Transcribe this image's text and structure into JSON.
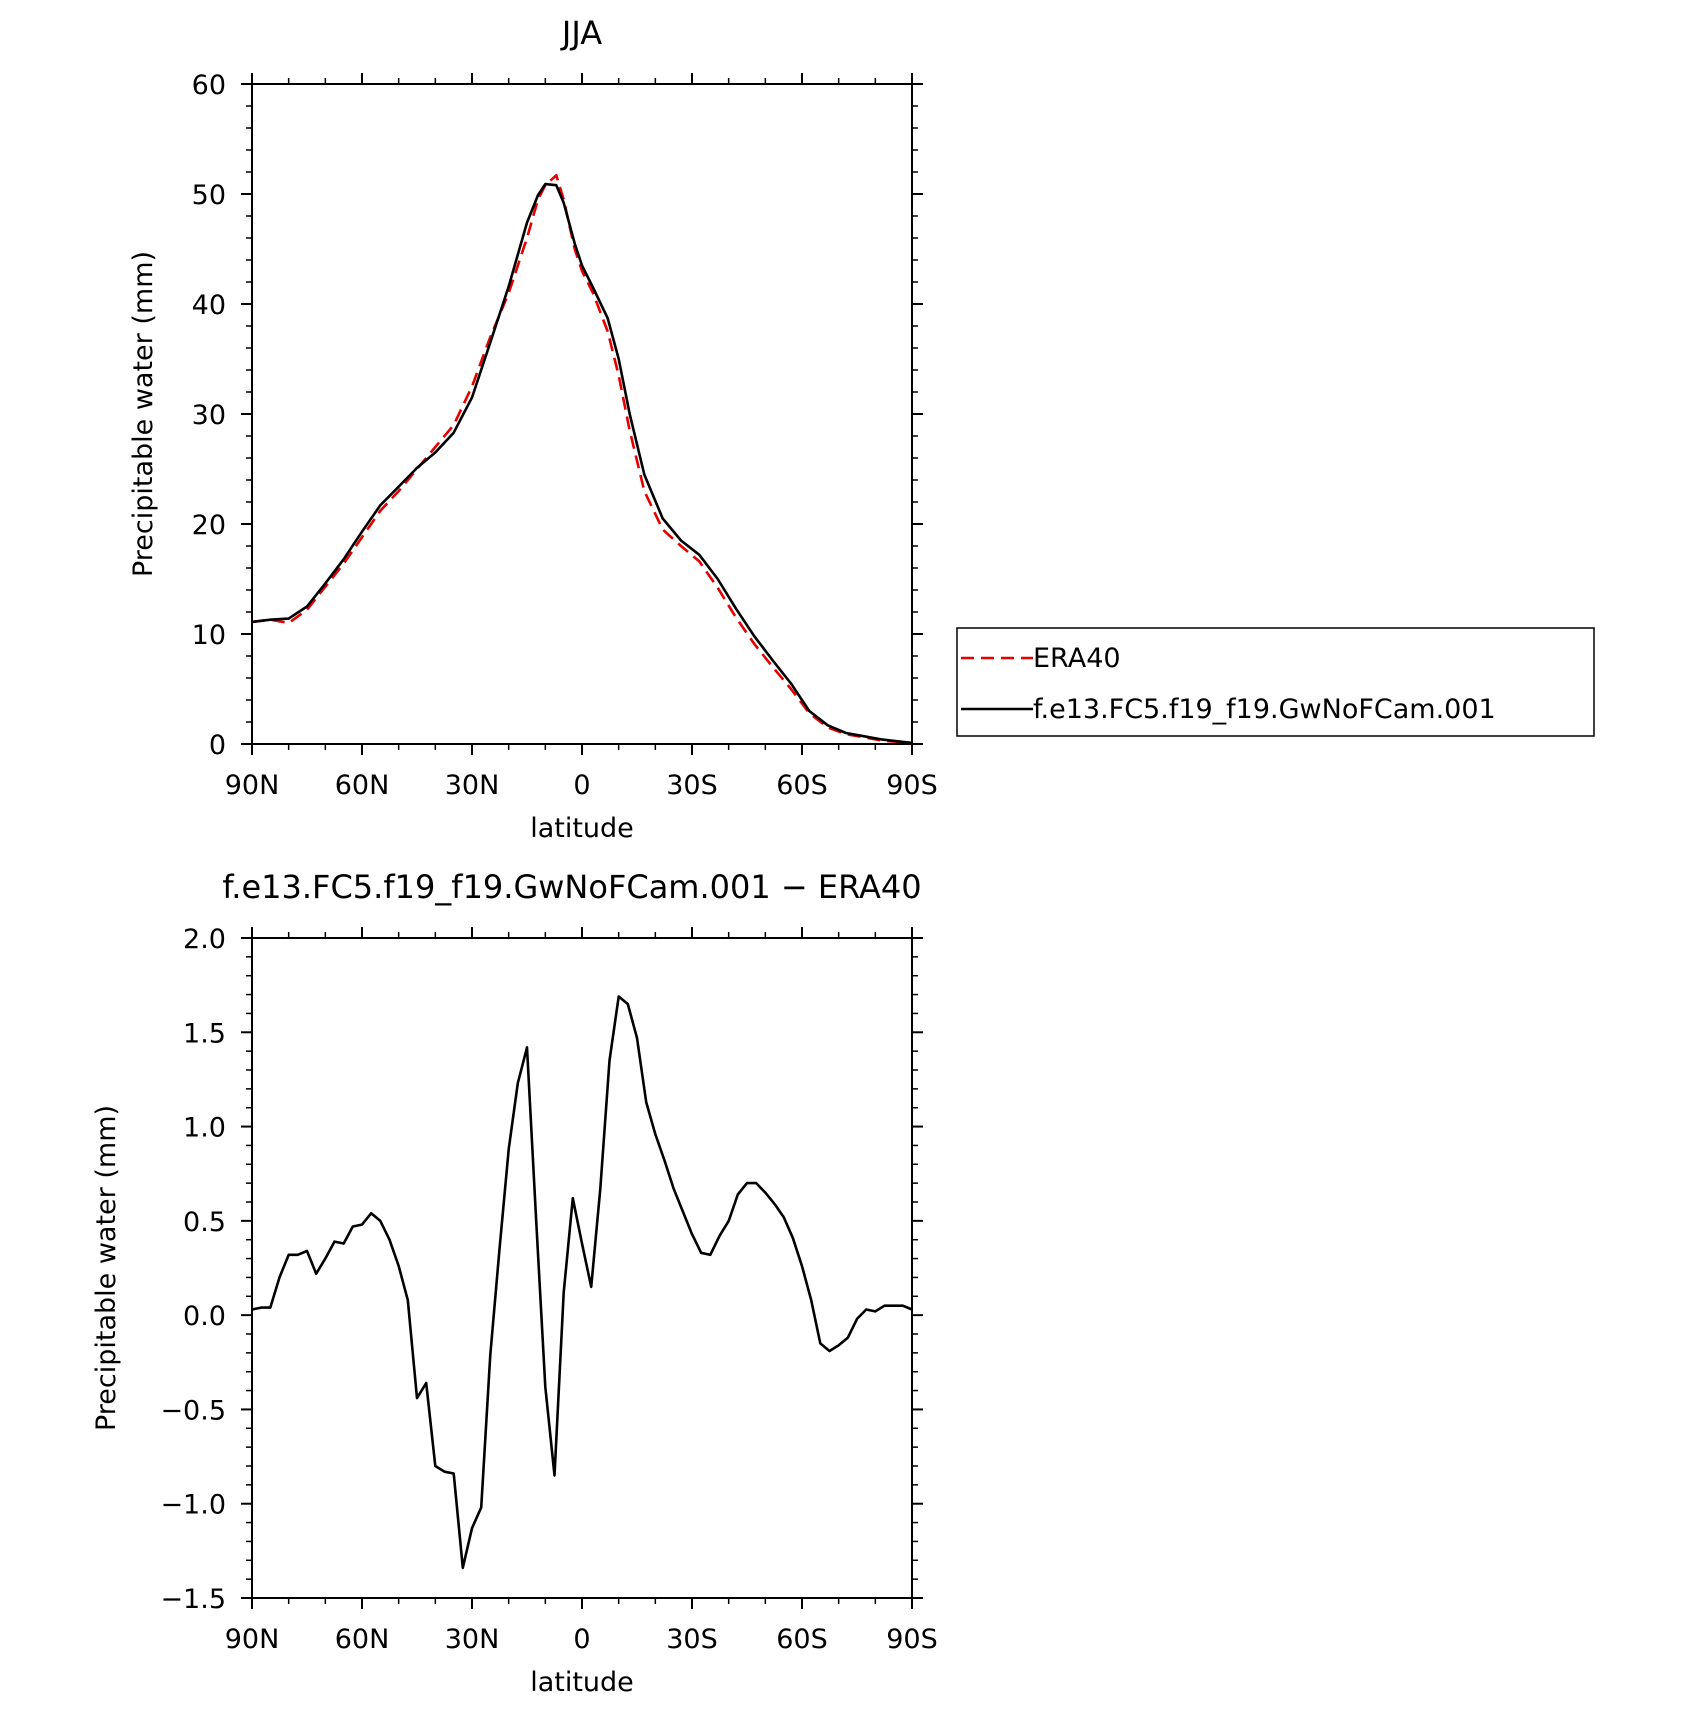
{
  "chart_data": [
    {
      "type": "line",
      "title": "JJA",
      "xlabel": "latitude",
      "ylabel": "Precipitable water (mm)",
      "xlim": [
        90,
        -90
      ],
      "ylim": [
        0,
        60
      ],
      "xticks": [
        {
          "value": 90,
          "label": "90N"
        },
        {
          "value": 60,
          "label": "60N"
        },
        {
          "value": 30,
          "label": "30N"
        },
        {
          "value": 0,
          "label": "0"
        },
        {
          "value": -30,
          "label": "30S"
        },
        {
          "value": -60,
          "label": "60S"
        },
        {
          "value": -90,
          "label": "90S"
        }
      ],
      "yticks": [
        {
          "value": 0,
          "label": "0"
        },
        {
          "value": 10,
          "label": "10"
        },
        {
          "value": 20,
          "label": "20"
        },
        {
          "value": 30,
          "label": "30"
        },
        {
          "value": 40,
          "label": "40"
        },
        {
          "value": 50,
          "label": "50"
        },
        {
          "value": 60,
          "label": "60"
        }
      ],
      "legend_position": "right",
      "series": [
        {
          "name": "ERA40",
          "color": "#e60000",
          "style": "dashed",
          "points": [
            [
              90,
              11.1
            ],
            [
              85,
              11.3
            ],
            [
              80,
              11.0
            ],
            [
              75,
              12.2
            ],
            [
              70,
              14.3
            ],
            [
              65,
              16.4
            ],
            [
              60,
              18.8
            ],
            [
              55,
              21.2
            ],
            [
              50,
              23.0
            ],
            [
              45,
              25.0
            ],
            [
              40,
              27.0
            ],
            [
              35,
              29.0
            ],
            [
              30,
              32.5
            ],
            [
              25,
              37.0
            ],
            [
              20,
              41.0
            ],
            [
              15,
              46.0
            ],
            [
              12,
              49.5
            ],
            [
              10,
              50.8
            ],
            [
              7,
              51.7
            ],
            [
              5,
              49.5
            ],
            [
              2,
              45.0
            ],
            [
              0,
              43.0
            ],
            [
              -3,
              41.0
            ],
            [
              -7,
              37.5
            ],
            [
              -10,
              33.5
            ],
            [
              -13,
              28.5
            ],
            [
              -17,
              23.0
            ],
            [
              -22,
              19.5
            ],
            [
              -27,
              18.0
            ],
            [
              -32,
              16.6
            ],
            [
              -37,
              14.2
            ],
            [
              -42,
              11.5
            ],
            [
              -47,
              9.1
            ],
            [
              -52,
              7.0
            ],
            [
              -57,
              5.0
            ],
            [
              -62,
              2.8
            ],
            [
              -67,
              1.5
            ],
            [
              -72,
              0.9
            ],
            [
              -77,
              0.6
            ],
            [
              -82,
              0.3
            ],
            [
              -90,
              0.1
            ]
          ]
        },
        {
          "name": "f.e13.FC5.f19_f19.GwNoFCam.001",
          "color": "#000000",
          "style": "solid",
          "points": [
            [
              90,
              11.1
            ],
            [
              85,
              11.3
            ],
            [
              80,
              11.4
            ],
            [
              75,
              12.5
            ],
            [
              70,
              14.6
            ],
            [
              65,
              16.8
            ],
            [
              60,
              19.3
            ],
            [
              55,
              21.7
            ],
            [
              50,
              23.4
            ],
            [
              45,
              25.1
            ],
            [
              40,
              26.5
            ],
            [
              35,
              28.3
            ],
            [
              30,
              31.5
            ],
            [
              25,
              36.5
            ],
            [
              20,
              41.6
            ],
            [
              15,
              47.4
            ],
            [
              12,
              49.9
            ],
            [
              10,
              50.9
            ],
            [
              7,
              50.8
            ],
            [
              5,
              49.2
            ],
            [
              2,
              45.5
            ],
            [
              0,
              43.5
            ],
            [
              -3,
              41.5
            ],
            [
              -7,
              38.7
            ],
            [
              -10,
              35.0
            ],
            [
              -13,
              30.0
            ],
            [
              -17,
              24.5
            ],
            [
              -22,
              20.5
            ],
            [
              -27,
              18.5
            ],
            [
              -32,
              17.2
            ],
            [
              -37,
              15.0
            ],
            [
              -42,
              12.3
            ],
            [
              -47,
              9.8
            ],
            [
              -52,
              7.6
            ],
            [
              -57,
              5.5
            ],
            [
              -62,
              3.0
            ],
            [
              -67,
              1.7
            ],
            [
              -72,
              1.0
            ],
            [
              -77,
              0.7
            ],
            [
              -82,
              0.4
            ],
            [
              -90,
              0.1
            ]
          ]
        }
      ]
    },
    {
      "type": "line",
      "title": "f.e13.FC5.f19_f19.GwNoFCam.001 − ERA40",
      "xlabel": "latitude",
      "ylabel": "Precipitable water (mm)",
      "xlim": [
        90,
        -90
      ],
      "ylim": [
        -1.5,
        2.0
      ],
      "xticks": [
        {
          "value": 90,
          "label": "90N"
        },
        {
          "value": 60,
          "label": "60N"
        },
        {
          "value": 30,
          "label": "30N"
        },
        {
          "value": 0,
          "label": "0"
        },
        {
          "value": -30,
          "label": "30S"
        },
        {
          "value": -60,
          "label": "60S"
        },
        {
          "value": -90,
          "label": "90S"
        }
      ],
      "yticks": [
        {
          "value": -1.5,
          "label": "−1.5"
        },
        {
          "value": -1.0,
          "label": "−1.0"
        },
        {
          "value": -0.5,
          "label": "−0.5"
        },
        {
          "value": 0.0,
          "label": "0.0"
        },
        {
          "value": 0.5,
          "label": "0.5"
        },
        {
          "value": 1.0,
          "label": "1.0"
        },
        {
          "value": 1.5,
          "label": "1.5"
        },
        {
          "value": 2.0,
          "label": "2.0"
        }
      ],
      "series": [
        {
          "color": "#000000",
          "style": "solid",
          "points": [
            [
              90,
              0.03
            ],
            [
              87.5,
              0.04
            ],
            [
              85,
              0.04
            ],
            [
              82.5,
              0.2
            ],
            [
              80,
              0.32
            ],
            [
              77.5,
              0.32
            ],
            [
              75,
              0.34
            ],
            [
              72.5,
              0.22
            ],
            [
              70,
              0.3
            ],
            [
              67.5,
              0.39
            ],
            [
              65,
              0.38
            ],
            [
              62.5,
              0.47
            ],
            [
              60,
              0.48
            ],
            [
              57.5,
              0.54
            ],
            [
              55,
              0.5
            ],
            [
              52.5,
              0.4
            ],
            [
              50,
              0.26
            ],
            [
              47.5,
              0.08
            ],
            [
              45,
              -0.44
            ],
            [
              42.5,
              -0.36
            ],
            [
              40,
              -0.8
            ],
            [
              37.5,
              -0.83
            ],
            [
              35,
              -0.84
            ],
            [
              32.5,
              -1.34
            ],
            [
              30,
              -1.13
            ],
            [
              27.5,
              -1.02
            ],
            [
              25,
              -0.21
            ],
            [
              22.5,
              0.35
            ],
            [
              20,
              0.88
            ],
            [
              17.5,
              1.23
            ],
            [
              15,
              1.42
            ],
            [
              12.5,
              0.5
            ],
            [
              10,
              -0.38
            ],
            [
              7.5,
              -0.85
            ],
            [
              5,
              0.12
            ],
            [
              2.5,
              0.62
            ],
            [
              0,
              0.38
            ],
            [
              -2.5,
              0.15
            ],
            [
              -5,
              0.67
            ],
            [
              -7.5,
              1.35
            ],
            [
              -10,
              1.69
            ],
            [
              -12.5,
              1.65
            ],
            [
              -15,
              1.47
            ],
            [
              -17.5,
              1.13
            ],
            [
              -20,
              0.96
            ],
            [
              -22.5,
              0.82
            ],
            [
              -25,
              0.67
            ],
            [
              -27.5,
              0.55
            ],
            [
              -30,
              0.43
            ],
            [
              -32.5,
              0.33
            ],
            [
              -35,
              0.32
            ],
            [
              -37.5,
              0.42
            ],
            [
              -40,
              0.5
            ],
            [
              -42.5,
              0.64
            ],
            [
              -45,
              0.7
            ],
            [
              -47.5,
              0.7
            ],
            [
              -50,
              0.65
            ],
            [
              -52.5,
              0.59
            ],
            [
              -55,
              0.52
            ],
            [
              -57.5,
              0.41
            ],
            [
              -60,
              0.26
            ],
            [
              -62.5,
              0.08
            ],
            [
              -65,
              -0.15
            ],
            [
              -67.5,
              -0.19
            ],
            [
              -70,
              -0.16
            ],
            [
              -72.5,
              -0.12
            ],
            [
              -75,
              -0.02
            ],
            [
              -77.5,
              0.03
            ],
            [
              -80,
              0.02
            ],
            [
              -82.5,
              0.05
            ],
            [
              -85,
              0.05
            ],
            [
              -87.5,
              0.05
            ],
            [
              -90,
              0.03
            ]
          ]
        }
      ]
    }
  ]
}
